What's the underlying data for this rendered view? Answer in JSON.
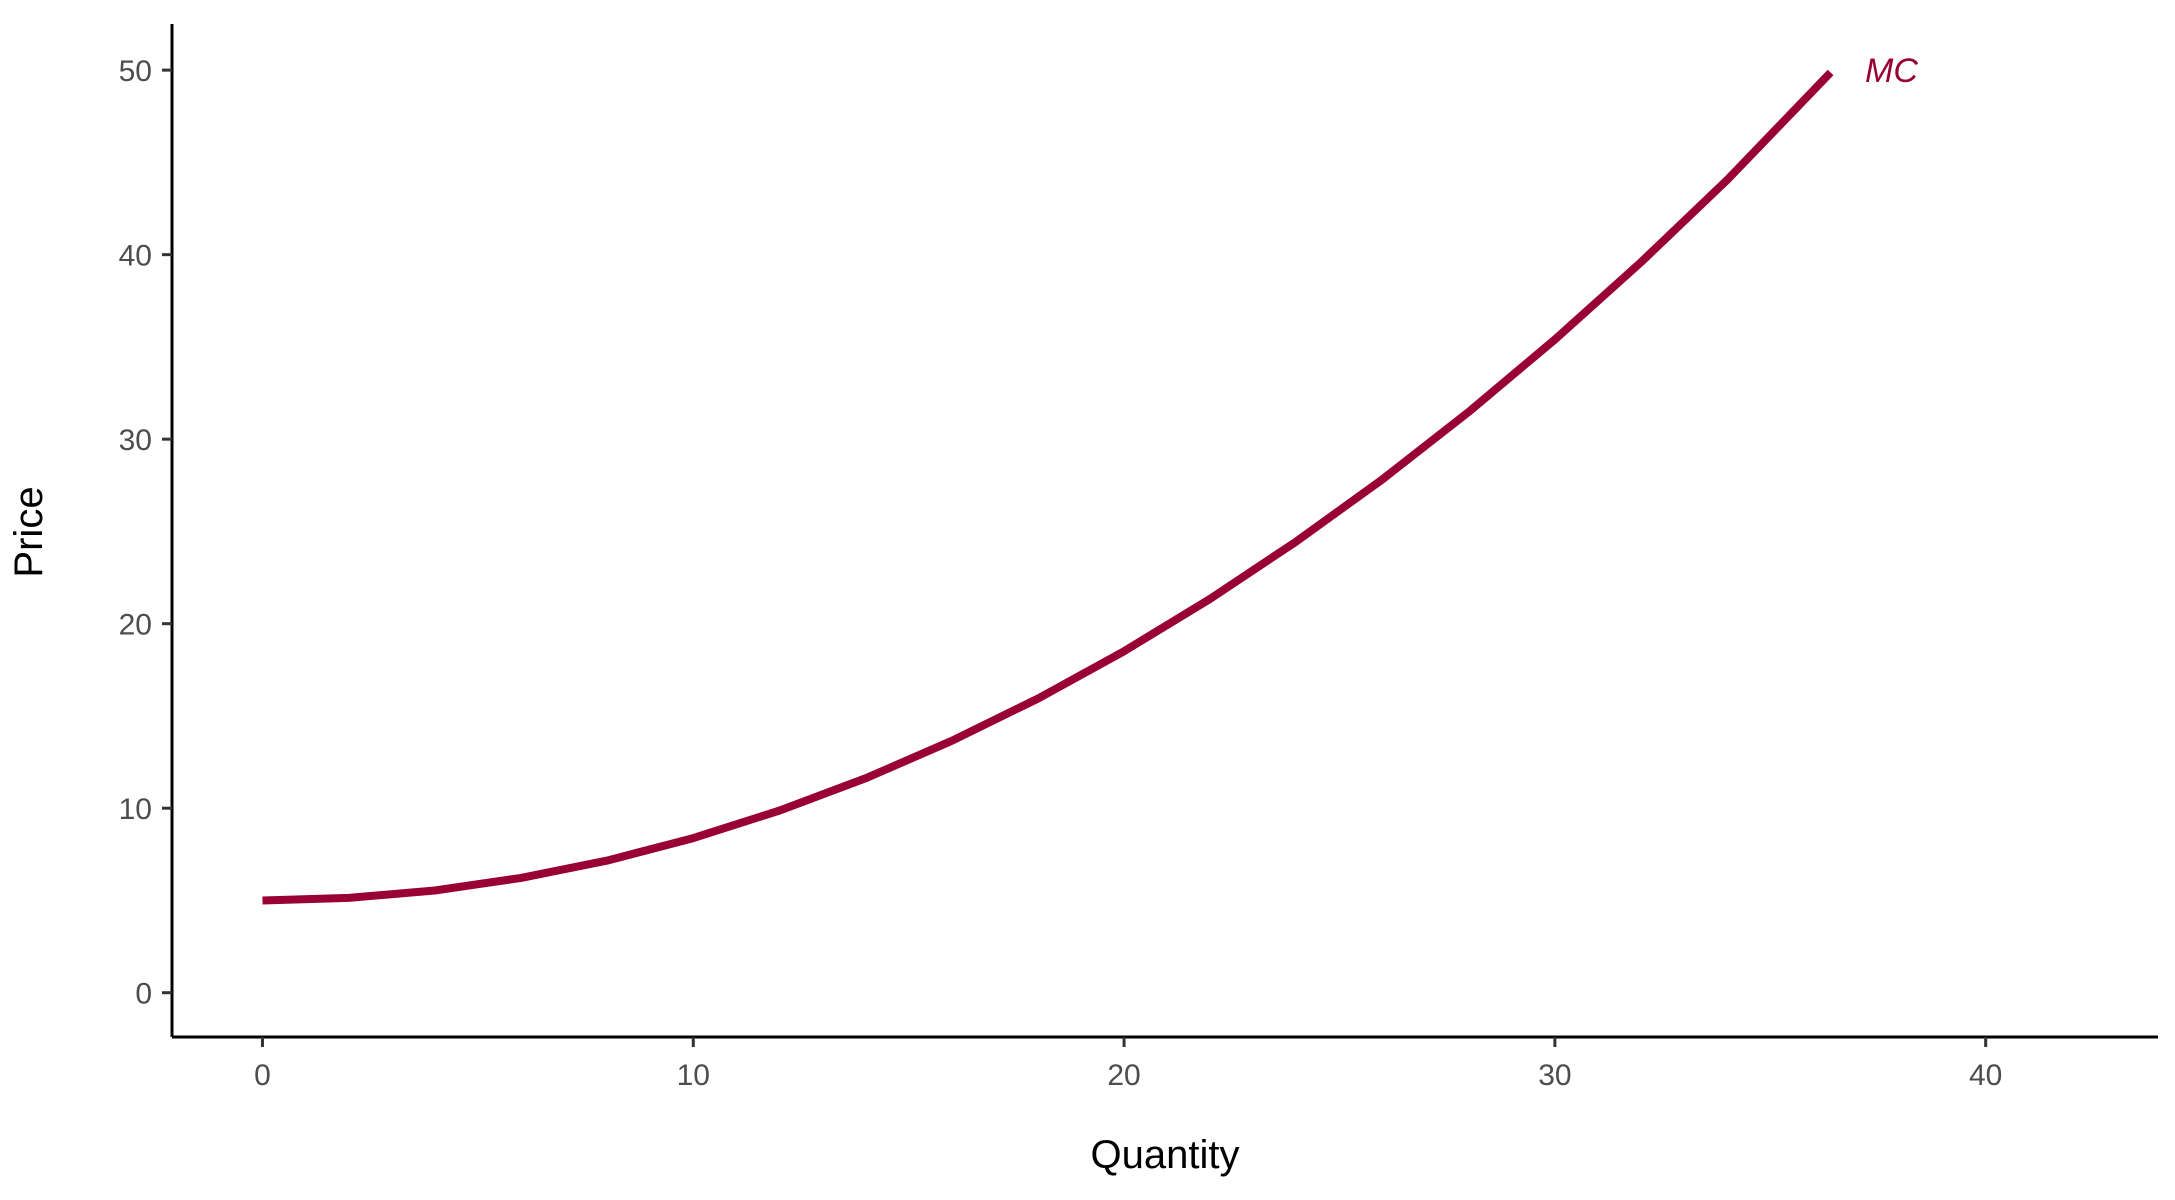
{
  "chart_data": {
    "type": "line",
    "title": "",
    "xlabel": "Quantity",
    "ylabel": "Price",
    "xlim": [
      -2.1,
      44
    ],
    "ylim": [
      -2.4,
      52.5
    ],
    "x_ticks": [
      0,
      10,
      20,
      30,
      40
    ],
    "y_ticks": [
      0,
      10,
      20,
      30,
      40,
      50
    ],
    "grid": false,
    "legend": "none",
    "series": [
      {
        "name": "MC",
        "color": "#990033",
        "x": [
          0,
          2,
          4,
          6,
          8,
          10,
          12,
          14,
          16,
          18,
          20,
          22,
          24,
          26,
          28,
          30,
          32,
          34,
          36.4
        ],
        "y": [
          5,
          5.14,
          5.54,
          6.22,
          7.16,
          8.38,
          9.87,
          11.62,
          13.65,
          15.94,
          18.51,
          21.35,
          24.46,
          27.83,
          31.48,
          35.4,
          39.59,
          44.05,
          49.87
        ]
      }
    ],
    "annotations": [
      {
        "text": "MC",
        "x": 37.2,
        "y": 50,
        "color": "#990033"
      }
    ]
  }
}
